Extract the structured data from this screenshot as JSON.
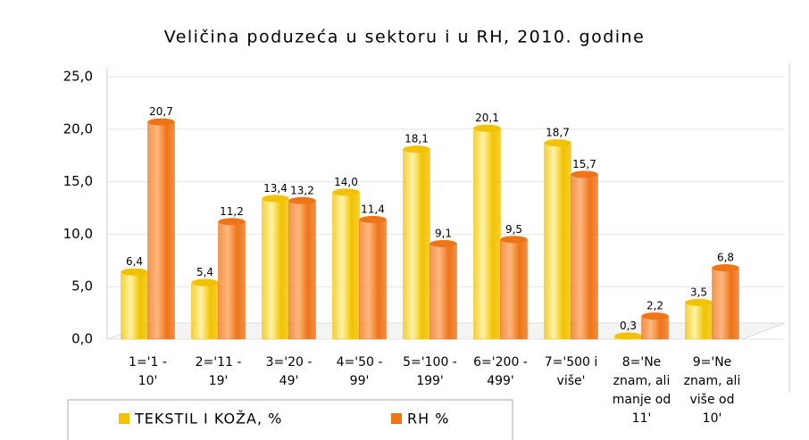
{
  "chart_data": {
    "type": "bar",
    "title": "Veličina poduzeća u sektoru i u RH, 2010. godine",
    "categories": [
      "1='1 -\n10'",
      "2='11 -\n19'",
      "3='20 -\n49'",
      "4='50 -\n99'",
      "5='100 -\n199'",
      "6='200 -\n499'",
      "7='500 i\nviše'",
      "8='Ne\nznam, ali\nmanje od\n11'",
      "9='Ne\nznam, ali\nviše od\n10'"
    ],
    "series": [
      {
        "name": "TEKSTIL I KOŽA, %",
        "color": "#f2c200",
        "values": [
          6.4,
          5.4,
          13.4,
          14.0,
          18.1,
          20.1,
          18.7,
          0.3,
          3.5
        ],
        "value_labels": [
          "6,4",
          "5,4",
          "13,4",
          "14,0",
          "18,1",
          "20,1",
          "18,7",
          "0,3",
          "3,5"
        ]
      },
      {
        "name": "RH %",
        "color": "#ee7418",
        "values": [
          20.7,
          11.2,
          13.2,
          11.4,
          9.1,
          9.5,
          15.7,
          2.2,
          6.8
        ],
        "value_labels": [
          "20,7",
          "11,2",
          "13,2",
          "11,4",
          "9,1",
          "9,5",
          "15,7",
          "2,2",
          "6,8"
        ]
      }
    ],
    "ylim": [
      0,
      25
    ],
    "yticks": [
      {
        "value": 0,
        "label": "0,0"
      },
      {
        "value": 5,
        "label": "5,0"
      },
      {
        "value": 10,
        "label": "10,0"
      },
      {
        "value": 15,
        "label": "15,0"
      },
      {
        "value": 20,
        "label": "20,0"
      },
      {
        "value": 25,
        "label": "25,0"
      }
    ],
    "grid": true
  }
}
